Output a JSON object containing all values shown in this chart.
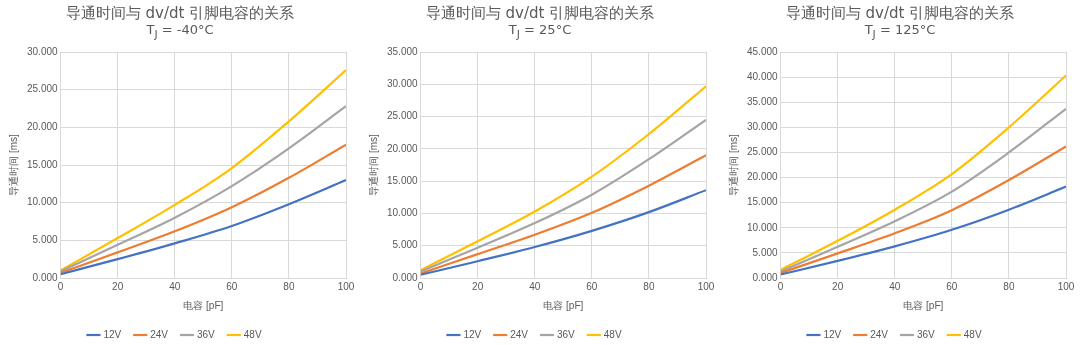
{
  "chart_data": [
    {
      "type": "line",
      "title": "导通时间与 dv/dt 引脚电容的关系",
      "subtitle": "T$_{J}$ = -40°C",
      "xlabel": "电容 [pF]",
      "ylabel": "导通时间 [ms]",
      "x": [
        0,
        20,
        40,
        60,
        80,
        100
      ],
      "xlim": [
        0,
        100
      ],
      "xticks": [
        0,
        20,
        40,
        60,
        80,
        100
      ],
      "ylim": [
        0,
        30
      ],
      "yticks": [
        {
          "value": 0,
          "label": "0.000"
        },
        {
          "value": 5,
          "label": "5.000"
        },
        {
          "value": 10,
          "label": "10.000"
        },
        {
          "value": 15,
          "label": "15.000"
        },
        {
          "value": 20,
          "label": "20.000"
        },
        {
          "value": 25,
          "label": "25.000"
        },
        {
          "value": 30,
          "label": "30.000"
        }
      ],
      "grid": true,
      "legend": "bottom",
      "marker": "none",
      "line_style": "solid",
      "series": [
        {
          "name": "12V",
          "color": "#4472c4",
          "values": [
            0.5,
            2.5,
            4.6,
            6.9,
            9.8,
            13.0
          ]
        },
        {
          "name": "24V",
          "color": "#ed7d31",
          "values": [
            0.7,
            3.4,
            6.2,
            9.4,
            13.3,
            17.7
          ]
        },
        {
          "name": "36V",
          "color": "#a5a5a5",
          "values": [
            0.9,
            4.4,
            8.0,
            12.2,
            17.2,
            22.8
          ]
        },
        {
          "name": "48V",
          "color": "#ffc000",
          "values": [
            1.0,
            5.3,
            9.7,
            14.6,
            20.8,
            27.6
          ]
        }
      ]
    },
    {
      "type": "line",
      "title": "导通时间与 dv/dt 引脚电容的关系",
      "subtitle": "T$_{J}$ = 25°C",
      "xlabel": "电容 [pF]",
      "ylabel": "导通时间 [ms]",
      "x": [
        0,
        20,
        40,
        60,
        80,
        100
      ],
      "xlim": [
        0,
        100
      ],
      "xticks": [
        0,
        20,
        40,
        60,
        80,
        100
      ],
      "ylim": [
        0,
        35
      ],
      "yticks": [
        {
          "value": 0,
          "label": "0.000"
        },
        {
          "value": 5,
          "label": "5.000"
        },
        {
          "value": 10,
          "label": "10.000"
        },
        {
          "value": 15,
          "label": "15.000"
        },
        {
          "value": 20,
          "label": "20.000"
        },
        {
          "value": 25,
          "label": "25.000"
        },
        {
          "value": 30,
          "label": "30.000"
        },
        {
          "value": 35,
          "label": "35.000"
        }
      ],
      "grid": true,
      "legend": "bottom",
      "marker": "none",
      "line_style": "solid",
      "series": [
        {
          "name": "12V",
          "color": "#4472c4",
          "values": [
            0.5,
            2.6,
            4.8,
            7.3,
            10.2,
            13.6
          ]
        },
        {
          "name": "24V",
          "color": "#ed7d31",
          "values": [
            0.7,
            3.7,
            6.7,
            10.1,
            14.3,
            19.0
          ]
        },
        {
          "name": "36V",
          "color": "#a5a5a5",
          "values": [
            1.0,
            4.7,
            8.5,
            12.9,
            18.4,
            24.5
          ]
        },
        {
          "name": "48V",
          "color": "#ffc000",
          "values": [
            1.2,
            5.7,
            10.3,
            15.7,
            22.3,
            29.7
          ]
        }
      ]
    },
    {
      "type": "line",
      "title": "导通时间与 dv/dt 引脚电容的关系",
      "subtitle": "T$_{J}$ = 125°C",
      "xlabel": "电容 [pF]",
      "ylabel": "导通时间 [ms]",
      "x": [
        0,
        20,
        40,
        60,
        80,
        100
      ],
      "xlim": [
        0,
        100
      ],
      "xticks": [
        0,
        20,
        40,
        60,
        80,
        100
      ],
      "ylim": [
        0,
        45
      ],
      "yticks": [
        {
          "value": 0,
          "label": "0.000"
        },
        {
          "value": 5,
          "label": "5.000"
        },
        {
          "value": 10,
          "label": "10.000"
        },
        {
          "value": 15,
          "label": "15.000"
        },
        {
          "value": 20,
          "label": "20.000"
        },
        {
          "value": 25,
          "label": "25.000"
        },
        {
          "value": 30,
          "label": "30.000"
        },
        {
          "value": 35,
          "label": "35.000"
        },
        {
          "value": 40,
          "label": "40.000"
        },
        {
          "value": 45,
          "label": "45.000"
        }
      ],
      "grid": true,
      "legend": "bottom",
      "marker": "none",
      "line_style": "solid",
      "series": [
        {
          "name": "12V",
          "color": "#4472c4",
          "values": [
            0.7,
            3.4,
            6.3,
            9.6,
            13.6,
            18.2
          ]
        },
        {
          "name": "24V",
          "color": "#ed7d31",
          "values": [
            1.0,
            4.9,
            8.9,
            13.5,
            19.5,
            26.2
          ]
        },
        {
          "name": "36V",
          "color": "#a5a5a5",
          "values": [
            1.3,
            6.2,
            11.3,
            17.2,
            25.0,
            33.7
          ]
        },
        {
          "name": "48V",
          "color": "#ffc000",
          "values": [
            1.6,
            7.4,
            13.6,
            20.7,
            30.0,
            40.3
          ]
        }
      ]
    }
  ]
}
